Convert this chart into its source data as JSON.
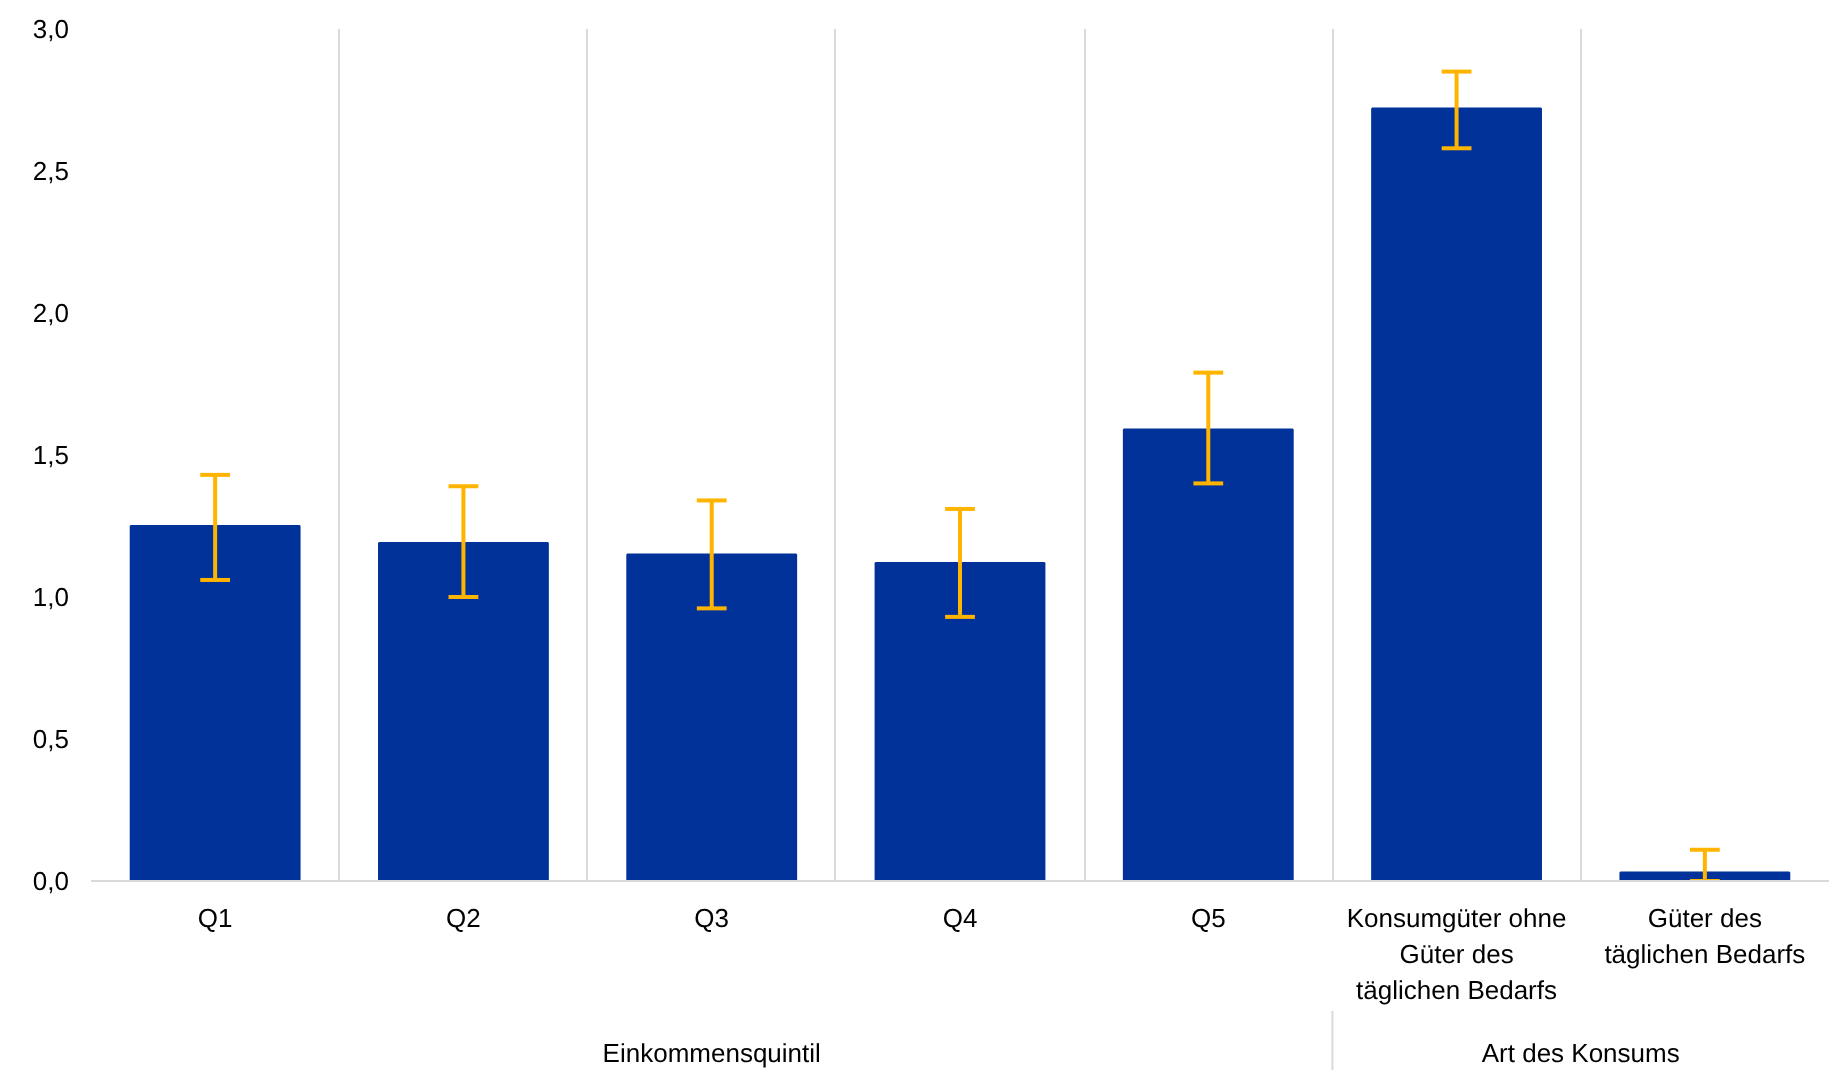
{
  "chart_data": {
    "type": "bar",
    "categories": [
      "Q1",
      "Q2",
      "Q3",
      "Q4",
      "Q5",
      "Konsumgüter ohne Güter des täglichen Bedarfs",
      "Güter des täglichen Bedarfs"
    ],
    "values": [
      1.25,
      1.19,
      1.15,
      1.12,
      1.59,
      2.72,
      0.03
    ],
    "errors": [
      [
        1.06,
        1.43
      ],
      [
        1.0,
        1.39
      ],
      [
        0.96,
        1.34
      ],
      [
        0.93,
        1.31
      ],
      [
        1.4,
        1.79
      ],
      [
        2.58,
        2.85
      ],
      [
        0.0,
        0.11
      ]
    ],
    "color": "#003299",
    "ylim": [
      0,
      3.0
    ],
    "yticks": [
      {
        "value": 0,
        "label": "0,0"
      },
      {
        "value": 0.5,
        "label": "0,5"
      },
      {
        "value": 1.0,
        "label": "1,0"
      },
      {
        "value": 1.5,
        "label": "1,5"
      },
      {
        "value": 2.0,
        "label": "2,0"
      },
      {
        "value": 2.5,
        "label": "2,5"
      },
      {
        "value": 3.0,
        "label": "3,0"
      }
    ],
    "grid": "x",
    "annotations": [
      "Einkommensquintil",
      "Art des Konsums"
    ]
  }
}
